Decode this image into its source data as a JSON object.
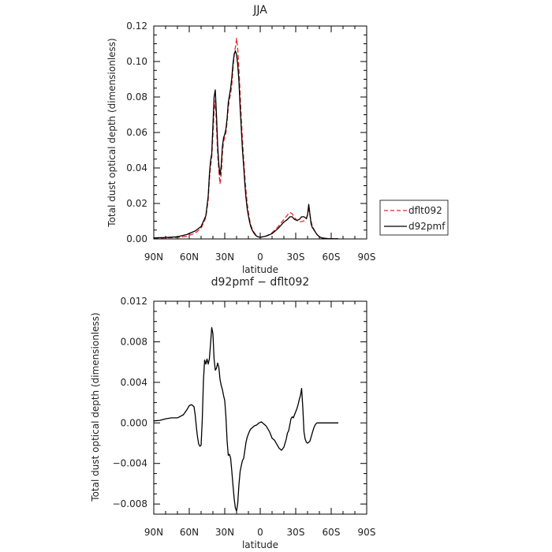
{
  "chart_data": [
    {
      "type": "line",
      "title": "JJA",
      "xlabel": "latitude",
      "ylabel": "Total dust optical depth (dimensionless)",
      "xlim": [
        90,
        -90
      ],
      "ylim": [
        0,
        0.12
      ],
      "xticks": [
        {
          "value": 90,
          "label": "90N"
        },
        {
          "value": 60,
          "label": "60N"
        },
        {
          "value": 30,
          "label": "30N"
        },
        {
          "value": 0,
          "label": "0"
        },
        {
          "value": -30,
          "label": "30S"
        },
        {
          "value": -60,
          "label": "60S"
        },
        {
          "value": -90,
          "label": "90S"
        }
      ],
      "yticks": [
        {
          "value": 0,
          "label": "0.00"
        },
        {
          "value": 0.02,
          "label": "0.02"
        },
        {
          "value": 0.04,
          "label": "0.04"
        },
        {
          "value": 0.06,
          "label": "0.06"
        },
        {
          "value": 0.08,
          "label": "0.08"
        },
        {
          "value": 0.1,
          "label": "0.10"
        },
        {
          "value": 0.12,
          "label": "0.12"
        }
      ],
      "legend_position": "right",
      "series": [
        {
          "name": "dflt092",
          "color": "#e8262a",
          "dashed": true,
          "x": [
            90,
            80,
            70,
            62,
            55,
            50,
            46,
            44,
            43,
            42,
            41,
            40,
            39,
            38,
            37,
            36,
            35,
            34,
            33,
            32,
            31,
            30,
            29,
            28,
            27,
            26,
            25,
            24,
            23,
            22,
            21,
            20,
            19,
            18,
            17,
            16,
            15,
            14,
            13,
            12,
            11,
            10,
            9,
            8,
            7,
            6,
            5,
            4,
            3,
            2,
            0,
            -5,
            -10,
            -15,
            -20,
            -23,
            -25,
            -27,
            -29,
            -31,
            -33,
            -35,
            -37,
            -39,
            -40,
            -41,
            -42,
            -43,
            -44,
            -46,
            -48,
            -50,
            -52,
            -55,
            -58,
            -62,
            -66
          ],
          "values": [
            0.0004,
            0.0006,
            0.0008,
            0.0015,
            0.0033,
            0.006,
            0.012,
            0.022,
            0.033,
            0.041,
            0.046,
            0.058,
            0.072,
            0.078,
            0.064,
            0.048,
            0.038,
            0.031,
            0.036,
            0.048,
            0.055,
            0.057,
            0.06,
            0.066,
            0.074,
            0.079,
            0.082,
            0.087,
            0.096,
            0.104,
            0.108,
            0.113,
            0.107,
            0.096,
            0.082,
            0.068,
            0.056,
            0.045,
            0.035,
            0.027,
            0.02,
            0.015,
            0.011,
            0.008,
            0.006,
            0.0045,
            0.0035,
            0.0025,
            0.0018,
            0.0013,
            0.001,
            0.0016,
            0.0035,
            0.0068,
            0.011,
            0.0135,
            0.015,
            0.0142,
            0.012,
            0.0105,
            0.0095,
            0.0098,
            0.0102,
            0.011,
            0.014,
            0.0165,
            0.0135,
            0.01,
            0.0075,
            0.0045,
            0.0025,
            0.0012,
            0.0006,
            0.0003,
            0.0002,
            0.0001,
            0.0001
          ]
        },
        {
          "name": "d92pmf",
          "color": "#000000",
          "dashed": false,
          "x": [
            90,
            80,
            70,
            62,
            55,
            50,
            46,
            44,
            43,
            42,
            41,
            40,
            39,
            38,
            37,
            36,
            35,
            34,
            33,
            32,
            31,
            30,
            29,
            28,
            27,
            26,
            25,
            24,
            23,
            22,
            21,
            20,
            19,
            18,
            17,
            16,
            15,
            14,
            13,
            12,
            11,
            10,
            9,
            8,
            7,
            6,
            5,
            4,
            3,
            2,
            0,
            -5,
            -10,
            -15,
            -20,
            -23,
            -25,
            -27,
            -29,
            -31,
            -33,
            -35,
            -37,
            -39,
            -40,
            -41,
            -42,
            -43,
            -44,
            -46,
            -48,
            -50,
            -52,
            -55,
            -58,
            -62,
            -66
          ],
          "values": [
            0.0006,
            0.0008,
            0.0012,
            0.0025,
            0.0045,
            0.007,
            0.013,
            0.024,
            0.036,
            0.044,
            0.048,
            0.064,
            0.08,
            0.084,
            0.07,
            0.053,
            0.042,
            0.036,
            0.041,
            0.052,
            0.057,
            0.059,
            0.062,
            0.068,
            0.077,
            0.081,
            0.085,
            0.091,
            0.099,
            0.104,
            0.106,
            0.104,
            0.098,
            0.089,
            0.074,
            0.062,
            0.05,
            0.041,
            0.031,
            0.023,
            0.017,
            0.013,
            0.0096,
            0.007,
            0.0053,
            0.004,
            0.003,
            0.0022,
            0.0016,
            0.0012,
            0.0009,
            0.0016,
            0.003,
            0.0058,
            0.0095,
            0.011,
            0.0125,
            0.0125,
            0.011,
            0.0105,
            0.011,
            0.0125,
            0.0125,
            0.0115,
            0.0135,
            0.0195,
            0.014,
            0.0085,
            0.0065,
            0.0045,
            0.0025,
            0.0012,
            0.0006,
            0.0003,
            0.0002,
            0.0001,
            0.0001
          ]
        }
      ]
    },
    {
      "type": "line",
      "title": "d92pmf − dflt092",
      "xlabel": "latitude",
      "ylabel": "Total dust optical depth (dimensionless)",
      "xlim": [
        90,
        -90
      ],
      "ylim": [
        -0.009,
        0.012
      ],
      "xticks": [
        {
          "value": 90,
          "label": "90N"
        },
        {
          "value": 60,
          "label": "60N"
        },
        {
          "value": 30,
          "label": "30N"
        },
        {
          "value": 0,
          "label": "0"
        },
        {
          "value": -30,
          "label": "30S"
        },
        {
          "value": -60,
          "label": "60S"
        },
        {
          "value": -90,
          "label": "90S"
        }
      ],
      "yticks": [
        {
          "value": -0.008,
          "label": "−0.008"
        },
        {
          "value": -0.004,
          "label": "−0.004"
        },
        {
          "value": 0,
          "label": "0.000"
        },
        {
          "value": 0.004,
          "label": "0.004"
        },
        {
          "value": 0.008,
          "label": "0.008"
        },
        {
          "value": 0.012,
          "label": "0.012"
        }
      ],
      "series": [
        {
          "name": "",
          "color": "#000000",
          "dashed": false,
          "x": [
            90,
            85,
            80,
            75,
            70,
            65,
            62,
            60,
            58,
            56,
            55,
            54,
            53,
            52,
            51,
            50,
            49,
            48,
            47,
            46,
            45,
            44,
            43,
            42,
            41,
            40,
            39,
            38,
            37,
            36,
            35,
            34,
            33,
            32,
            31,
            30,
            29,
            28,
            27,
            26,
            25,
            24,
            23,
            22,
            21,
            20,
            19,
            18,
            17,
            16,
            15,
            14,
            13,
            12,
            11,
            10,
            9,
            8,
            7,
            6,
            5,
            3,
            1,
            -1,
            -3,
            -5,
            -8,
            -10,
            -12,
            -14,
            -16,
            -18,
            -20,
            -22,
            -23,
            -24,
            -26,
            -27,
            -28,
            -29,
            -30,
            -31,
            -32,
            -33,
            -34,
            -35,
            -36,
            -37,
            -38,
            -39,
            -40,
            -41,
            -42,
            -43,
            -44,
            -45,
            -46,
            -47,
            -48,
            -50,
            -52,
            -54,
            -56,
            -58,
            -60,
            -62,
            -64,
            -66
          ],
          "values": [
            0.0002,
            0.00025,
            0.0004,
            0.0005,
            0.0005,
            0.0008,
            0.0013,
            0.0017,
            0.0018,
            0.0016,
            0.0008,
            -0.0004,
            -0.0014,
            -0.0021,
            -0.0023,
            -0.0022,
            0.0003,
            0.0042,
            0.0062,
            0.0058,
            0.0063,
            0.0058,
            0.0063,
            0.0078,
            0.0094,
            0.0088,
            0.0063,
            0.0052,
            0.0054,
            0.0059,
            0.0055,
            0.0043,
            0.0037,
            0.0033,
            0.0027,
            0.0022,
            0.0006,
            -0.0018,
            -0.0032,
            -0.0031,
            -0.0035,
            -0.0048,
            -0.0062,
            -0.0075,
            -0.0084,
            -0.0087,
            -0.0079,
            -0.0061,
            -0.0048,
            -0.0042,
            -0.0037,
            -0.0035,
            -0.0027,
            -0.0019,
            -0.0014,
            -0.0011,
            -0.0008,
            -0.0006,
            -0.0005,
            -0.0004,
            -0.0003,
            -0.0002,
            0.0,
            0.0001,
            -0.0001,
            -0.0003,
            -0.0009,
            -0.0015,
            -0.0017,
            -0.0021,
            -0.0025,
            -0.0027,
            -0.0024,
            -0.0016,
            -0.001,
            -0.0008,
            0.0004,
            0.0006,
            0.0005,
            0.0008,
            0.0011,
            0.0014,
            0.0018,
            0.0023,
            0.0027,
            0.0034,
            0.0015,
            -0.0009,
            -0.0016,
            -0.0019,
            -0.002,
            -0.0019,
            -0.0018,
            -0.0014,
            -0.001,
            -0.0006,
            -0.0003,
            -0.0001,
            0.0,
            0.0,
            0.0,
            0.0,
            0.0,
            0.0,
            0.0,
            0.0,
            0.0,
            0.0
          ]
        }
      ]
    }
  ]
}
